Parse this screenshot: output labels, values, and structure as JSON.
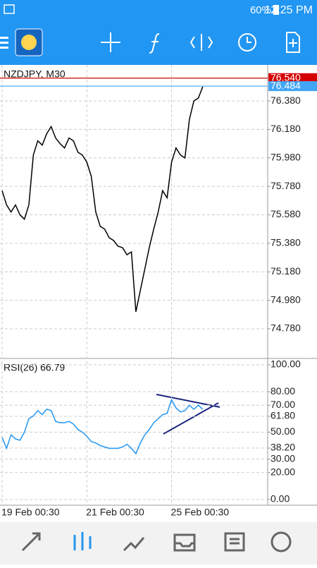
{
  "status_bar": {
    "battery": "60%",
    "time": "12:25 PM"
  },
  "chart_data": [
    {
      "type": "line",
      "title": "NZDJPY, M30",
      "color": "#000000",
      "categories": [
        "19 Feb 00:30",
        null,
        null,
        null,
        null,
        null,
        null,
        null,
        null,
        null,
        null,
        null,
        null,
        null,
        null,
        null,
        null,
        null,
        null,
        "21 Feb 00:30",
        null,
        null,
        null,
        null,
        null,
        null,
        null,
        null,
        null,
        null,
        null,
        null,
        null,
        null,
        null,
        null,
        null,
        null,
        "25 Feb 00:30",
        null,
        null,
        null,
        null,
        null,
        null,
        null
      ],
      "values": [
        75.75,
        75.65,
        75.6,
        75.65,
        75.58,
        75.55,
        75.65,
        76.0,
        76.1,
        76.07,
        76.15,
        76.2,
        76.12,
        76.08,
        76.05,
        76.12,
        76.1,
        76.02,
        76.0,
        75.95,
        75.85,
        75.6,
        75.5,
        75.48,
        75.42,
        75.4,
        75.36,
        75.35,
        75.3,
        75.32,
        74.9,
        75.05,
        75.2,
        75.35,
        75.48,
        75.6,
        75.75,
        75.7,
        75.95,
        76.05,
        76.0,
        75.98,
        76.25,
        76.38,
        76.4,
        76.48
      ],
      "ylim": [
        74.572,
        76.633
      ],
      "yticks": [
        {
          "value": 76.38,
          "label": "76.380"
        },
        {
          "value": 76.18,
          "label": "76.180"
        },
        {
          "value": 75.98,
          "label": "75.980"
        },
        {
          "value": 75.78,
          "label": "75.780"
        },
        {
          "value": 75.58,
          "label": "75.580"
        },
        {
          "value": 75.38,
          "label": "75.380"
        },
        {
          "value": 75.18,
          "label": "75.180"
        },
        {
          "value": 74.98,
          "label": "74.980"
        },
        {
          "value": 74.78,
          "label": "74.780"
        }
      ],
      "price_lines": [
        {
          "value": 76.54,
          "label": "76.540",
          "color": "#d50000"
        },
        {
          "value": 76.484,
          "label": "76.484",
          "color": "#42a5f5"
        }
      ],
      "grid": true
    },
    {
      "type": "line",
      "title": "RSI(26) 66.79",
      "color": "#2196f3",
      "values": [
        46,
        38,
        48,
        45,
        44,
        50,
        60,
        62,
        66,
        63,
        67,
        66,
        58,
        57,
        57,
        58,
        56,
        52,
        50,
        47,
        43,
        42,
        40,
        39,
        38,
        38,
        38,
        39,
        41,
        38,
        34,
        42,
        48,
        52,
        57,
        60,
        63,
        64,
        74,
        68,
        65,
        66,
        70,
        67,
        70,
        67
      ],
      "ylim": [
        -4.2,
        104.7
      ],
      "yticks": [
        {
          "value": 100,
          "label": "100.00"
        },
        {
          "value": 80,
          "label": "80.00"
        },
        {
          "value": 70,
          "label": "70.00"
        },
        {
          "value": 61.8,
          "label": "61.80"
        },
        {
          "value": 50,
          "label": "50.00"
        },
        {
          "value": 38.2,
          "label": "38.20"
        },
        {
          "value": 30,
          "label": "30.00"
        },
        {
          "value": 20,
          "label": "20.00"
        },
        {
          "value": 0,
          "label": "0.00"
        }
      ],
      "grid": true
    }
  ]
}
